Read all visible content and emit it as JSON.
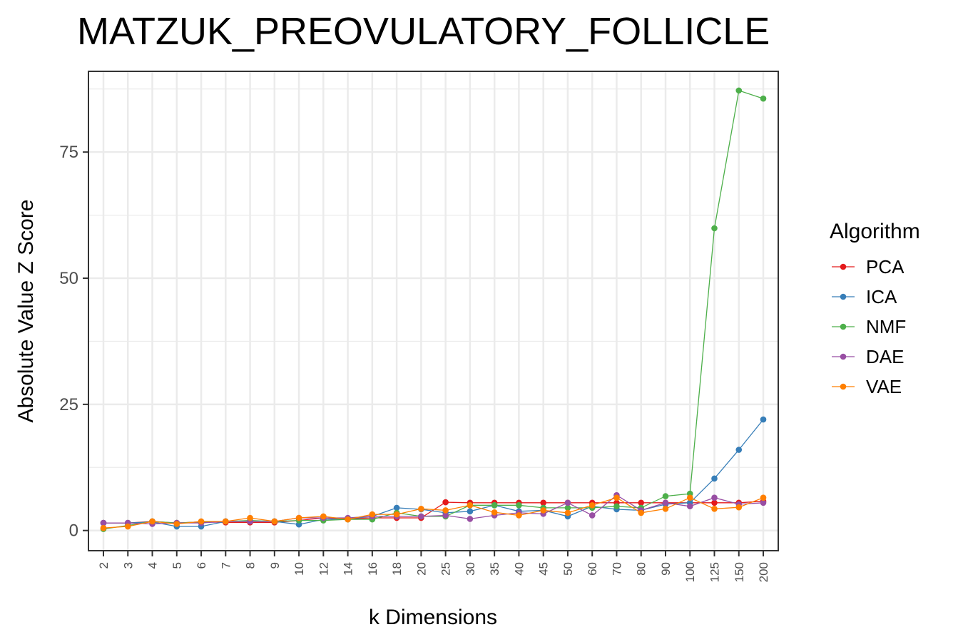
{
  "chart_data": {
    "type": "line",
    "title": "MATZUK_PREOVULATORY_FOLLICLE",
    "xlabel": "k Dimensions",
    "ylabel": "Absolute Value Z Score",
    "categories": [
      "2",
      "3",
      "4",
      "5",
      "6",
      "7",
      "8",
      "9",
      "10",
      "12",
      "14",
      "16",
      "18",
      "20",
      "25",
      "30",
      "35",
      "40",
      "45",
      "50",
      "60",
      "70",
      "80",
      "90",
      "100",
      "125",
      "150",
      "200"
    ],
    "yticks": [
      0,
      25,
      50,
      75
    ],
    "ylim": [
      -4,
      91
    ],
    "grid": true,
    "legend_title": "Algorithm",
    "legend_position": "right",
    "series": [
      {
        "name": "PCA",
        "color": "#E41A1C",
        "values": [
          1.5,
          1.5,
          1.8,
          1.5,
          1.7,
          1.6,
          1.6,
          1.6,
          2.0,
          2.5,
          2.3,
          2.5,
          2.5,
          2.5,
          5.6,
          5.5,
          5.5,
          5.5,
          5.5,
          5.5,
          5.5,
          5.5,
          5.5,
          5.5,
          5.5,
          5.5,
          5.5,
          5.8
        ]
      },
      {
        "name": "ICA",
        "color": "#377EB8",
        "values": [
          1.5,
          1.5,
          1.7,
          0.8,
          0.8,
          1.8,
          1.8,
          1.8,
          1.2,
          2.2,
          2.3,
          2.8,
          4.5,
          4.2,
          3.5,
          3.8,
          5.0,
          3.8,
          4.0,
          2.8,
          4.8,
          4.2,
          4.0,
          5.2,
          5.5,
          10.3,
          16.0,
          22.0
        ]
      },
      {
        "name": "NMF",
        "color": "#4DAF4A",
        "values": [
          0.3,
          1.0,
          1.8,
          1.5,
          1.7,
          1.8,
          2.0,
          1.8,
          2.0,
          2.0,
          2.2,
          2.2,
          3.5,
          2.8,
          2.8,
          5.0,
          5.0,
          5.0,
          4.5,
          4.5,
          4.5,
          4.8,
          4.5,
          6.8,
          7.3,
          59.9,
          87.2,
          85.6
        ]
      },
      {
        "name": "DAE",
        "color": "#984EA3",
        "values": [
          1.5,
          1.5,
          1.3,
          1.5,
          1.5,
          1.8,
          1.8,
          1.8,
          2.5,
          2.5,
          2.5,
          2.8,
          2.8,
          2.8,
          3.0,
          2.3,
          3.0,
          3.5,
          3.3,
          5.5,
          3.0,
          7.0,
          4.0,
          5.5,
          4.8,
          6.5,
          5.2,
          5.5
        ]
      },
      {
        "name": "VAE",
        "color": "#FF7F00",
        "values": [
          0.5,
          0.8,
          1.8,
          1.3,
          1.8,
          1.8,
          2.5,
          1.8,
          2.5,
          2.8,
          2.2,
          3.2,
          3.2,
          4.3,
          4.0,
          5.0,
          3.6,
          3.0,
          4.0,
          3.5,
          5.0,
          6.5,
          3.5,
          4.3,
          6.5,
          4.3,
          4.6,
          6.5
        ]
      }
    ]
  }
}
